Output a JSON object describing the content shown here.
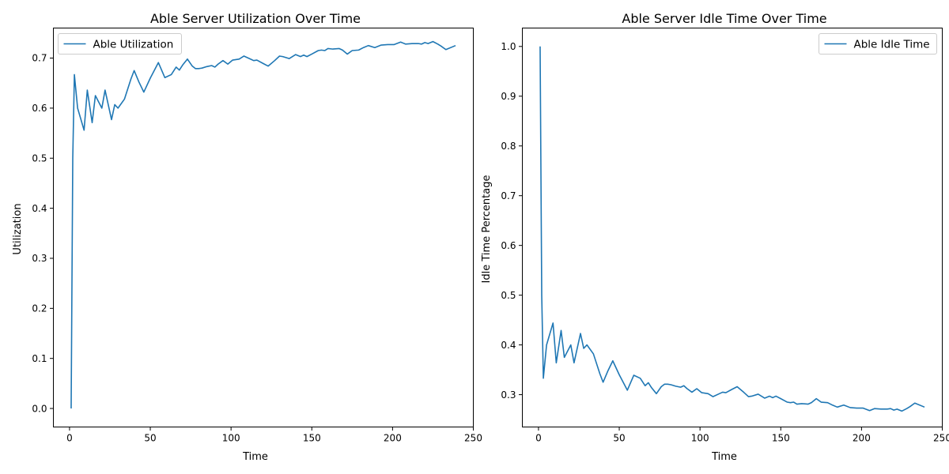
{
  "chart_data": [
    {
      "type": "line",
      "title": "Able Server Utilization Over Time",
      "xlabel": "Time",
      "ylabel": "Utilization",
      "xlim": [
        -10,
        250
      ],
      "ylim": [
        -0.037,
        0.76
      ],
      "xticks": [
        0,
        50,
        100,
        150,
        200,
        250
      ],
      "yticks": [
        0.0,
        0.1,
        0.2,
        0.3,
        0.4,
        0.5,
        0.6,
        0.7
      ],
      "ytick_decimals": 1,
      "grid": false,
      "legend_position": "top-left",
      "color": "#1f77b4",
      "series": [
        {
          "name": "Able Utilization",
          "x": [
            1,
            2,
            3,
            5,
            9,
            11,
            14,
            16,
            20,
            22,
            26,
            28,
            30,
            34,
            38,
            40,
            43,
            46,
            50,
            55,
            59,
            63,
            66,
            68,
            70,
            73,
            76,
            78,
            80,
            82,
            85,
            88,
            90,
            92,
            95,
            98,
            101,
            105,
            108,
            112,
            114,
            116,
            120,
            123,
            127,
            130,
            132,
            136,
            140,
            143,
            145,
            147,
            150,
            154,
            156,
            158,
            160,
            163,
            167,
            169,
            172,
            175,
            179,
            182,
            185,
            189,
            193,
            197,
            201,
            205,
            208,
            212,
            216,
            218,
            220,
            222,
            225,
            228,
            230,
            233,
            239
          ],
          "values": [
            0.0,
            0.5,
            0.667,
            0.6,
            0.556,
            0.636,
            0.571,
            0.625,
            0.6,
            0.636,
            0.577,
            0.607,
            0.6,
            0.618,
            0.658,
            0.675,
            0.652,
            0.632,
            0.66,
            0.691,
            0.661,
            0.667,
            0.682,
            0.676,
            0.686,
            0.698,
            0.684,
            0.679,
            0.679,
            0.68,
            0.683,
            0.685,
            0.682,
            0.688,
            0.695,
            0.688,
            0.696,
            0.698,
            0.704,
            0.698,
            0.695,
            0.696,
            0.689,
            0.684,
            0.695,
            0.704,
            0.703,
            0.699,
            0.707,
            0.703,
            0.706,
            0.703,
            0.708,
            0.715,
            0.716,
            0.715,
            0.719,
            0.718,
            0.719,
            0.716,
            0.708,
            0.715,
            0.716,
            0.721,
            0.725,
            0.721,
            0.726,
            0.727,
            0.727,
            0.732,
            0.728,
            0.729,
            0.729,
            0.728,
            0.731,
            0.729,
            0.733,
            0.728,
            0.724,
            0.717,
            0.725
          ]
        }
      ]
    },
    {
      "type": "line",
      "title": "Able Server Idle Time Over Time",
      "xlabel": "Time",
      "ylabel": "Idle Time Percentage",
      "xlim": [
        -10,
        250
      ],
      "ylim": [
        0.235,
        1.037
      ],
      "xticks": [
        0,
        50,
        100,
        150,
        200,
        250
      ],
      "yticks": [
        0.3,
        0.4,
        0.5,
        0.6,
        0.7,
        0.8,
        0.9,
        1.0
      ],
      "ytick_decimals": 1,
      "grid": false,
      "legend_position": "top-right",
      "color": "#1f77b4",
      "series": [
        {
          "name": "Able Idle Time",
          "x": [
            1,
            2,
            3,
            5,
            9,
            11,
            14,
            16,
            20,
            22,
            26,
            28,
            30,
            34,
            38,
            40,
            43,
            46,
            50,
            55,
            59,
            63,
            66,
            68,
            70,
            73,
            76,
            78,
            80,
            82,
            85,
            88,
            90,
            92,
            95,
            98,
            101,
            105,
            108,
            112,
            114,
            116,
            120,
            123,
            127,
            130,
            132,
            136,
            140,
            143,
            145,
            147,
            150,
            154,
            156,
            158,
            160,
            163,
            167,
            169,
            172,
            175,
            179,
            182,
            185,
            189,
            193,
            197,
            201,
            205,
            208,
            212,
            216,
            218,
            220,
            222,
            225,
            228,
            230,
            233,
            239
          ],
          "values": [
            1.0,
            0.5,
            0.333,
            0.4,
            0.444,
            0.364,
            0.429,
            0.375,
            0.4,
            0.364,
            0.423,
            0.393,
            0.4,
            0.382,
            0.342,
            0.325,
            0.348,
            0.368,
            0.34,
            0.309,
            0.339,
            0.333,
            0.318,
            0.324,
            0.314,
            0.302,
            0.316,
            0.321,
            0.321,
            0.32,
            0.317,
            0.315,
            0.318,
            0.312,
            0.305,
            0.312,
            0.304,
            0.302,
            0.296,
            0.302,
            0.305,
            0.304,
            0.311,
            0.316,
            0.305,
            0.296,
            0.297,
            0.301,
            0.293,
            0.297,
            0.294,
            0.297,
            0.292,
            0.285,
            0.284,
            0.285,
            0.281,
            0.282,
            0.281,
            0.284,
            0.292,
            0.285,
            0.284,
            0.279,
            0.275,
            0.279,
            0.274,
            0.273,
            0.273,
            0.268,
            0.272,
            0.271,
            0.271,
            0.272,
            0.269,
            0.271,
            0.267,
            0.272,
            0.276,
            0.283,
            0.275
          ]
        }
      ]
    }
  ]
}
